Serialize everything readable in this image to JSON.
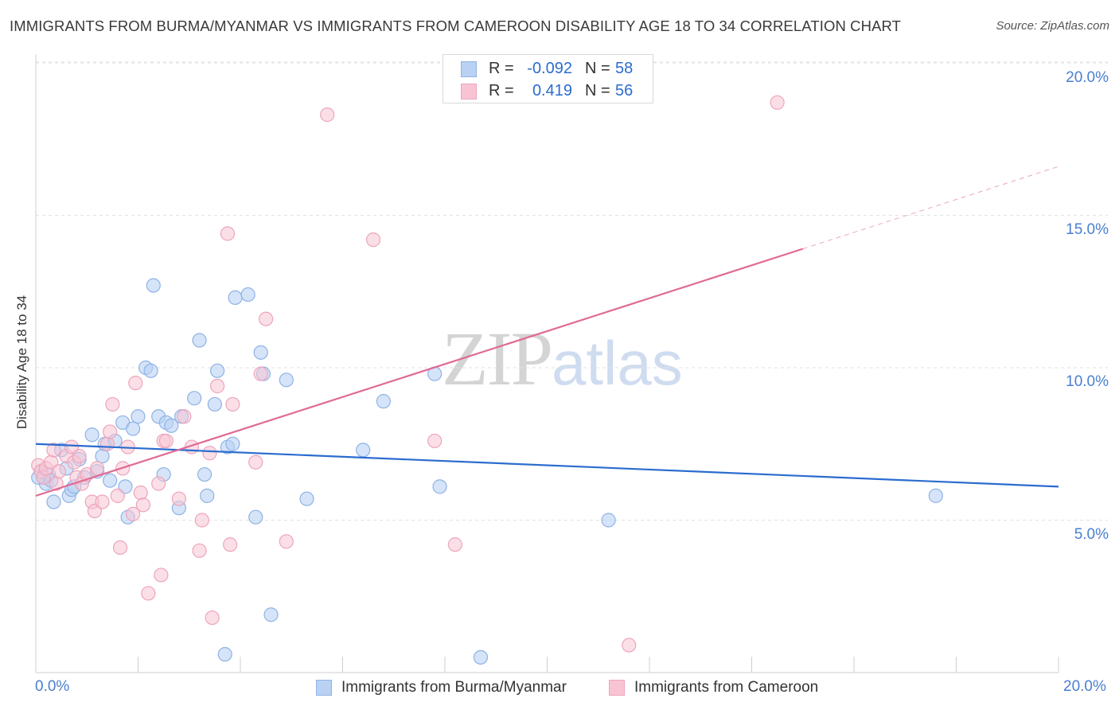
{
  "title": "IMMIGRANTS FROM BURMA/MYANMAR VS IMMIGRANTS FROM CAMEROON DISABILITY AGE 18 TO 34 CORRELATION CHART",
  "source": "Source: ZipAtlas.com",
  "watermark": {
    "zip": "ZIP",
    "atlas": "atlas"
  },
  "legend_top": {
    "r_label": "R =",
    "n_label": "N =",
    "series": [
      {
        "r": "-0.092",
        "n": "58"
      },
      {
        "r": "0.419",
        "n": "56"
      }
    ]
  },
  "colors": {
    "blue_fill": "#b9d2f3",
    "blue_stroke": "#8fb2e6",
    "blue_line": "#2b6ccf",
    "pink_fill": "#f8c4d4",
    "pink_stroke": "#eea4bc",
    "pink_line": "#e06a93",
    "tick_text": "#4a7fd0",
    "grid": "#e2e2e2"
  },
  "chart_data": {
    "type": "scatter",
    "title": "IMMIGRANTS FROM BURMA/MYANMAR VS IMMIGRANTS FROM CAMEROON DISABILITY AGE 18 TO 34 CORRELATION CHART",
    "xlabel": "",
    "ylabel": "Disability Age 18 to 34",
    "xlim": [
      0,
      20
    ],
    "ylim": [
      0,
      20.5
    ],
    "x_tick_labels": [
      "0.0%",
      "20.0%"
    ],
    "y_ticks": [
      5,
      10,
      15,
      20
    ],
    "y_tick_labels": [
      "5.0%",
      "10.0%",
      "15.0%",
      "20.0%"
    ],
    "grid": true,
    "legend_position": "bottom",
    "series": [
      {
        "name": "Immigrants from Burma/Myanmar",
        "color": "#b9d2f3",
        "r": -0.092,
        "n": 58,
        "trend": {
          "x": [
            0,
            20
          ],
          "y": [
            7.5,
            6.1
          ]
        },
        "points": [
          [
            0.1,
            6.6
          ],
          [
            0.15,
            6.4
          ],
          [
            0.2,
            6.2
          ],
          [
            0.25,
            6.5
          ],
          [
            0.3,
            6.3
          ],
          [
            0.35,
            5.6
          ],
          [
            0.5,
            7.3
          ],
          [
            0.6,
            6.7
          ],
          [
            0.65,
            5.8
          ],
          [
            0.7,
            6.0
          ],
          [
            0.85,
            7.0
          ],
          [
            0.95,
            6.4
          ],
          [
            1.1,
            7.8
          ],
          [
            1.2,
            6.6
          ],
          [
            1.3,
            7.1
          ],
          [
            1.35,
            7.5
          ],
          [
            1.45,
            6.3
          ],
          [
            1.55,
            7.6
          ],
          [
            1.7,
            8.2
          ],
          [
            1.75,
            6.1
          ],
          [
            1.8,
            5.1
          ],
          [
            1.9,
            8.0
          ],
          [
            2.0,
            8.4
          ],
          [
            2.15,
            10.0
          ],
          [
            2.25,
            9.9
          ],
          [
            2.3,
            12.7
          ],
          [
            2.4,
            8.4
          ],
          [
            2.5,
            6.5
          ],
          [
            2.55,
            8.2
          ],
          [
            2.65,
            8.1
          ],
          [
            2.8,
            5.4
          ],
          [
            2.85,
            8.4
          ],
          [
            3.1,
            9.0
          ],
          [
            3.2,
            10.9
          ],
          [
            3.3,
            6.5
          ],
          [
            3.35,
            5.8
          ],
          [
            3.5,
            8.8
          ],
          [
            3.55,
            9.9
          ],
          [
            3.7,
            0.6
          ],
          [
            3.75,
            7.4
          ],
          [
            3.85,
            7.5
          ],
          [
            3.9,
            12.3
          ],
          [
            4.15,
            12.4
          ],
          [
            4.3,
            5.1
          ],
          [
            4.4,
            10.5
          ],
          [
            4.45,
            9.8
          ],
          [
            4.6,
            1.9
          ],
          [
            4.9,
            9.6
          ],
          [
            5.3,
            5.7
          ],
          [
            6.4,
            7.3
          ],
          [
            6.8,
            8.9
          ],
          [
            7.8,
            9.8
          ],
          [
            7.9,
            6.1
          ],
          [
            8.7,
            0.5
          ],
          [
            11.2,
            5.0
          ],
          [
            17.6,
            5.8
          ],
          [
            0.05,
            6.4
          ],
          [
            0.75,
            6.1
          ]
        ]
      },
      {
        "name": "Immigrants from Cameroon",
        "color": "#f8c4d4",
        "r": 0.419,
        "n": 56,
        "trend": {
          "x": [
            0,
            15
          ],
          "y": [
            5.8,
            13.9
          ]
        },
        "trend_dashed": {
          "x": [
            15,
            20
          ],
          "y": [
            13.9,
            16.6
          ]
        },
        "points": [
          [
            0.05,
            6.8
          ],
          [
            0.1,
            6.6
          ],
          [
            0.15,
            6.4
          ],
          [
            0.2,
            6.7
          ],
          [
            0.3,
            6.9
          ],
          [
            0.35,
            7.3
          ],
          [
            0.4,
            6.2
          ],
          [
            0.45,
            6.6
          ],
          [
            0.6,
            7.1
          ],
          [
            0.7,
            7.4
          ],
          [
            0.75,
            6.9
          ],
          [
            0.8,
            6.4
          ],
          [
            0.85,
            7.1
          ],
          [
            0.9,
            6.2
          ],
          [
            1.0,
            6.5
          ],
          [
            1.1,
            5.6
          ],
          [
            1.15,
            5.3
          ],
          [
            1.2,
            6.7
          ],
          [
            1.3,
            5.6
          ],
          [
            1.4,
            7.5
          ],
          [
            1.45,
            7.9
          ],
          [
            1.5,
            8.8
          ],
          [
            1.6,
            5.8
          ],
          [
            1.65,
            4.1
          ],
          [
            1.7,
            6.7
          ],
          [
            1.8,
            7.4
          ],
          [
            1.9,
            5.2
          ],
          [
            1.95,
            9.5
          ],
          [
            2.05,
            5.9
          ],
          [
            2.1,
            5.5
          ],
          [
            2.2,
            2.6
          ],
          [
            2.4,
            6.2
          ],
          [
            2.45,
            3.2
          ],
          [
            2.5,
            7.6
          ],
          [
            2.55,
            7.6
          ],
          [
            2.8,
            5.7
          ],
          [
            2.9,
            8.4
          ],
          [
            3.05,
            7.4
          ],
          [
            3.2,
            4.0
          ],
          [
            3.25,
            5.0
          ],
          [
            3.4,
            7.2
          ],
          [
            3.45,
            1.8
          ],
          [
            3.55,
            9.4
          ],
          [
            3.75,
            14.4
          ],
          [
            3.8,
            4.2
          ],
          [
            3.85,
            8.8
          ],
          [
            4.3,
            6.9
          ],
          [
            4.4,
            9.8
          ],
          [
            4.5,
            11.6
          ],
          [
            4.9,
            4.3
          ],
          [
            5.7,
            18.3
          ],
          [
            6.6,
            14.2
          ],
          [
            7.8,
            7.6
          ],
          [
            8.2,
            4.2
          ],
          [
            11.6,
            0.9
          ],
          [
            14.5,
            18.7
          ]
        ]
      }
    ]
  }
}
